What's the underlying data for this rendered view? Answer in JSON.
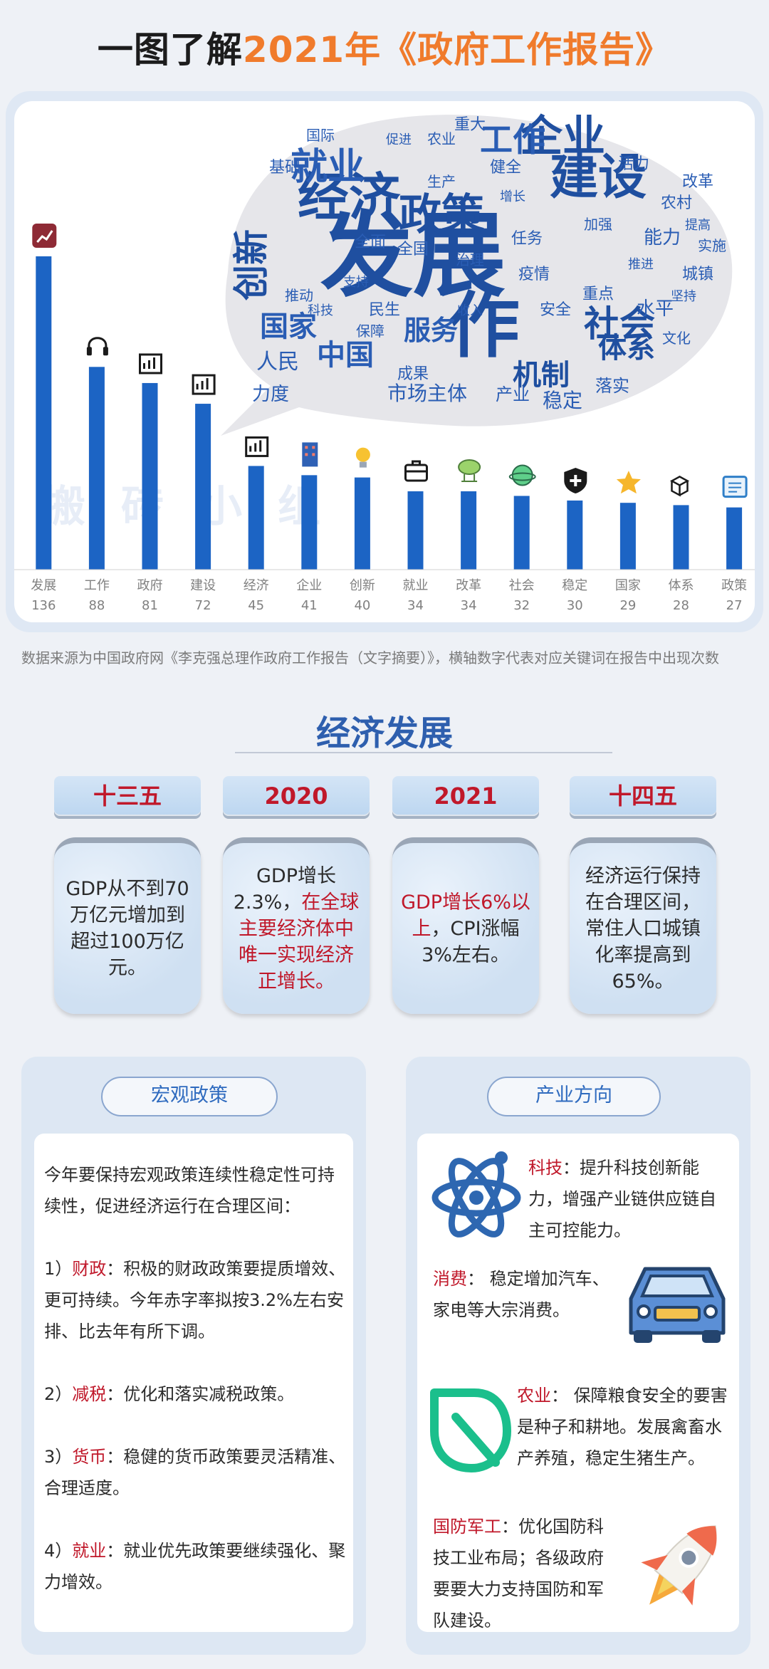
{
  "title": {
    "prefix": "一图了解",
    "highlight": "2021年《政府工作报告》"
  },
  "watermark": "搬砖小组",
  "chart_data": {
    "type": "bar",
    "categories": [
      "发展",
      "工作",
      "政府",
      "建设",
      "经济",
      "企业",
      "创新",
      "就业",
      "改革",
      "社会",
      "稳定",
      "国家",
      "体系",
      "政策"
    ],
    "values": [
      136,
      88,
      81,
      72,
      45,
      41,
      40,
      34,
      34,
      32,
      30,
      29,
      28,
      27
    ],
    "colors": {
      "bar": "#1c64c4",
      "axis": "#bfbfbf",
      "label": "#808080"
    }
  },
  "icons": [
    "chart-icon",
    "headset-icon",
    "building-icon",
    "crane-icon",
    "growth-chart-icon",
    "office-tower-icon",
    "lightbulb-icon",
    "briefcase-icon",
    "cloud-network-icon",
    "globe-icon",
    "shield-plus-icon",
    "star-icon",
    "cubes-icon",
    "news-icon"
  ],
  "wordcloud": {
    "big": [
      "发展",
      "经济",
      "政策",
      "建设",
      "企业",
      "就业",
      "工作",
      "国家",
      "中国",
      "作",
      "社会",
      "机制",
      "体系",
      "服务",
      "创新"
    ],
    "small": [
      "人民",
      "市场主体",
      "稳定",
      "落实",
      "水平",
      "力度",
      "能力",
      "改革",
      "全面",
      "全国",
      "治理",
      "基础",
      "健全",
      "农村",
      "重大",
      "疫情",
      "安全",
      "产业",
      "重点",
      "民生",
      "成果",
      "城镇",
      "国际",
      "活力",
      "任务",
      "农业",
      "文化",
      "保障",
      "实施",
      "生产",
      "推进",
      "促进",
      "加强",
      "支持",
      "推动",
      "提高",
      "增长",
      "收入",
      "科技",
      "坚持"
    ]
  },
  "source_note": "数据来源为中国政府网《李克强总理作政府工作报告（文字摘要）》，横轴数字代表对应关键词在报告中出现次数",
  "section": {
    "title": "经济发展"
  },
  "periods": [
    {
      "tab": "十三五",
      "text": "GDP从不到70万亿元增加到超过100万亿元。"
    },
    {
      "tab": "2020",
      "text_a": "GDP增长2.3%，",
      "text_b": "在全球主要经济体中唯一实现经济正增长。"
    },
    {
      "tab": "2021",
      "text_a": "GDP增长6%以上",
      "text_b": "，CPI涨幅3%左右。"
    },
    {
      "tab": "十四五",
      "text": "经济运行保持在合理区间，常住人口城镇化率提高到65%。"
    }
  ],
  "macro": {
    "title": "宏观政策",
    "intro": "今年要保持宏观政策连续性稳定性可持续性，促进经济运行在合理区间：",
    "items": [
      {
        "num": "1）",
        "key": "财政",
        "text": "：积极的财政政策要提质增效、更可持续。今年赤字率拟按3.2%左右安排、比去年有所下调。"
      },
      {
        "num": "2）",
        "key": "减税",
        "text": "：优化和落实减税政策。"
      },
      {
        "num": "3）",
        "key": "货币",
        "text": "：稳健的货币政策要灵活精准、合理适度。"
      },
      {
        "num": "4）",
        "key": "就业",
        "text": "：就业优先政策要继续强化、聚力增效。"
      }
    ]
  },
  "industry": {
    "title": "产业方向",
    "items": [
      {
        "key": "科技",
        "text": "：提升科技创新能力，增强产业链供应链自主可控能力。"
      },
      {
        "key": "消费",
        "text": "： 稳定增加汽车、家电等大宗消费。"
      },
      {
        "key": "农业",
        "text": "： 保障粮食安全的要害是种子和耕地。发展禽畜水产养殖，稳定生猪生产。"
      },
      {
        "key": "国防军工",
        "text": "：优化国防科技工业布局；各级政府要要大力支持国防和军队建设。"
      }
    ]
  }
}
